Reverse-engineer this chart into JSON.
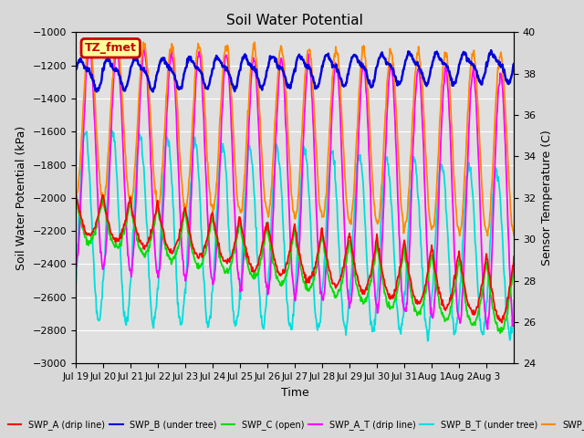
{
  "title": "Soil Water Potential",
  "xlabel": "Time",
  "ylabel_left": "Soil Water Potential (kPa)",
  "ylabel_right": "Sensor Temperature (C)",
  "ylim_left": [
    -3000,
    -1000
  ],
  "ylim_right": [
    24,
    40
  ],
  "yticks_left": [
    -3000,
    -2800,
    -2600,
    -2400,
    -2200,
    -2000,
    -1800,
    -1600,
    -1400,
    -1200,
    -1000
  ],
  "yticks_right": [
    24,
    26,
    28,
    30,
    32,
    34,
    36,
    38,
    40
  ],
  "n_days": 16,
  "xtick_labels": [
    "Jul 19",
    "Jul 20",
    "Jul 21",
    "Jul 22",
    "Jul 23",
    "Jul 24",
    "Jul 25",
    "Jul 26",
    "Jul 27",
    "Jul 28",
    "Jul 29",
    "Jul 30",
    "Jul 31",
    "Aug 1",
    "Aug 2",
    "Aug 3"
  ],
  "annotation_text": "TZ_fmet",
  "annotation_color": "#cc0000",
  "annotation_bg": "#ffff99",
  "background_color": "#e0e0e0",
  "grid_color": "#ffffff",
  "figsize": [
    6.4,
    4.8
  ],
  "dpi": 100,
  "colors": {
    "SWP_A": "#ff0000",
    "SWP_B": "#0000dd",
    "SWP_C": "#00dd00",
    "SWP_A_T": "#ff00ff",
    "SWP_B_T": "#00dddd",
    "SWP_C_T": "#ff8800"
  },
  "labels": {
    "SWP_A": "SWP_A (drip line)",
    "SWP_B": "SWP_B (under tree)",
    "SWP_C": "SWP_C (open)",
    "SWP_A_T": "SWP_A_T (drip line)",
    "SWP_B_T": "SWP_B_T (under tree)",
    "SWP_C_T": "SWP_C_T"
  }
}
